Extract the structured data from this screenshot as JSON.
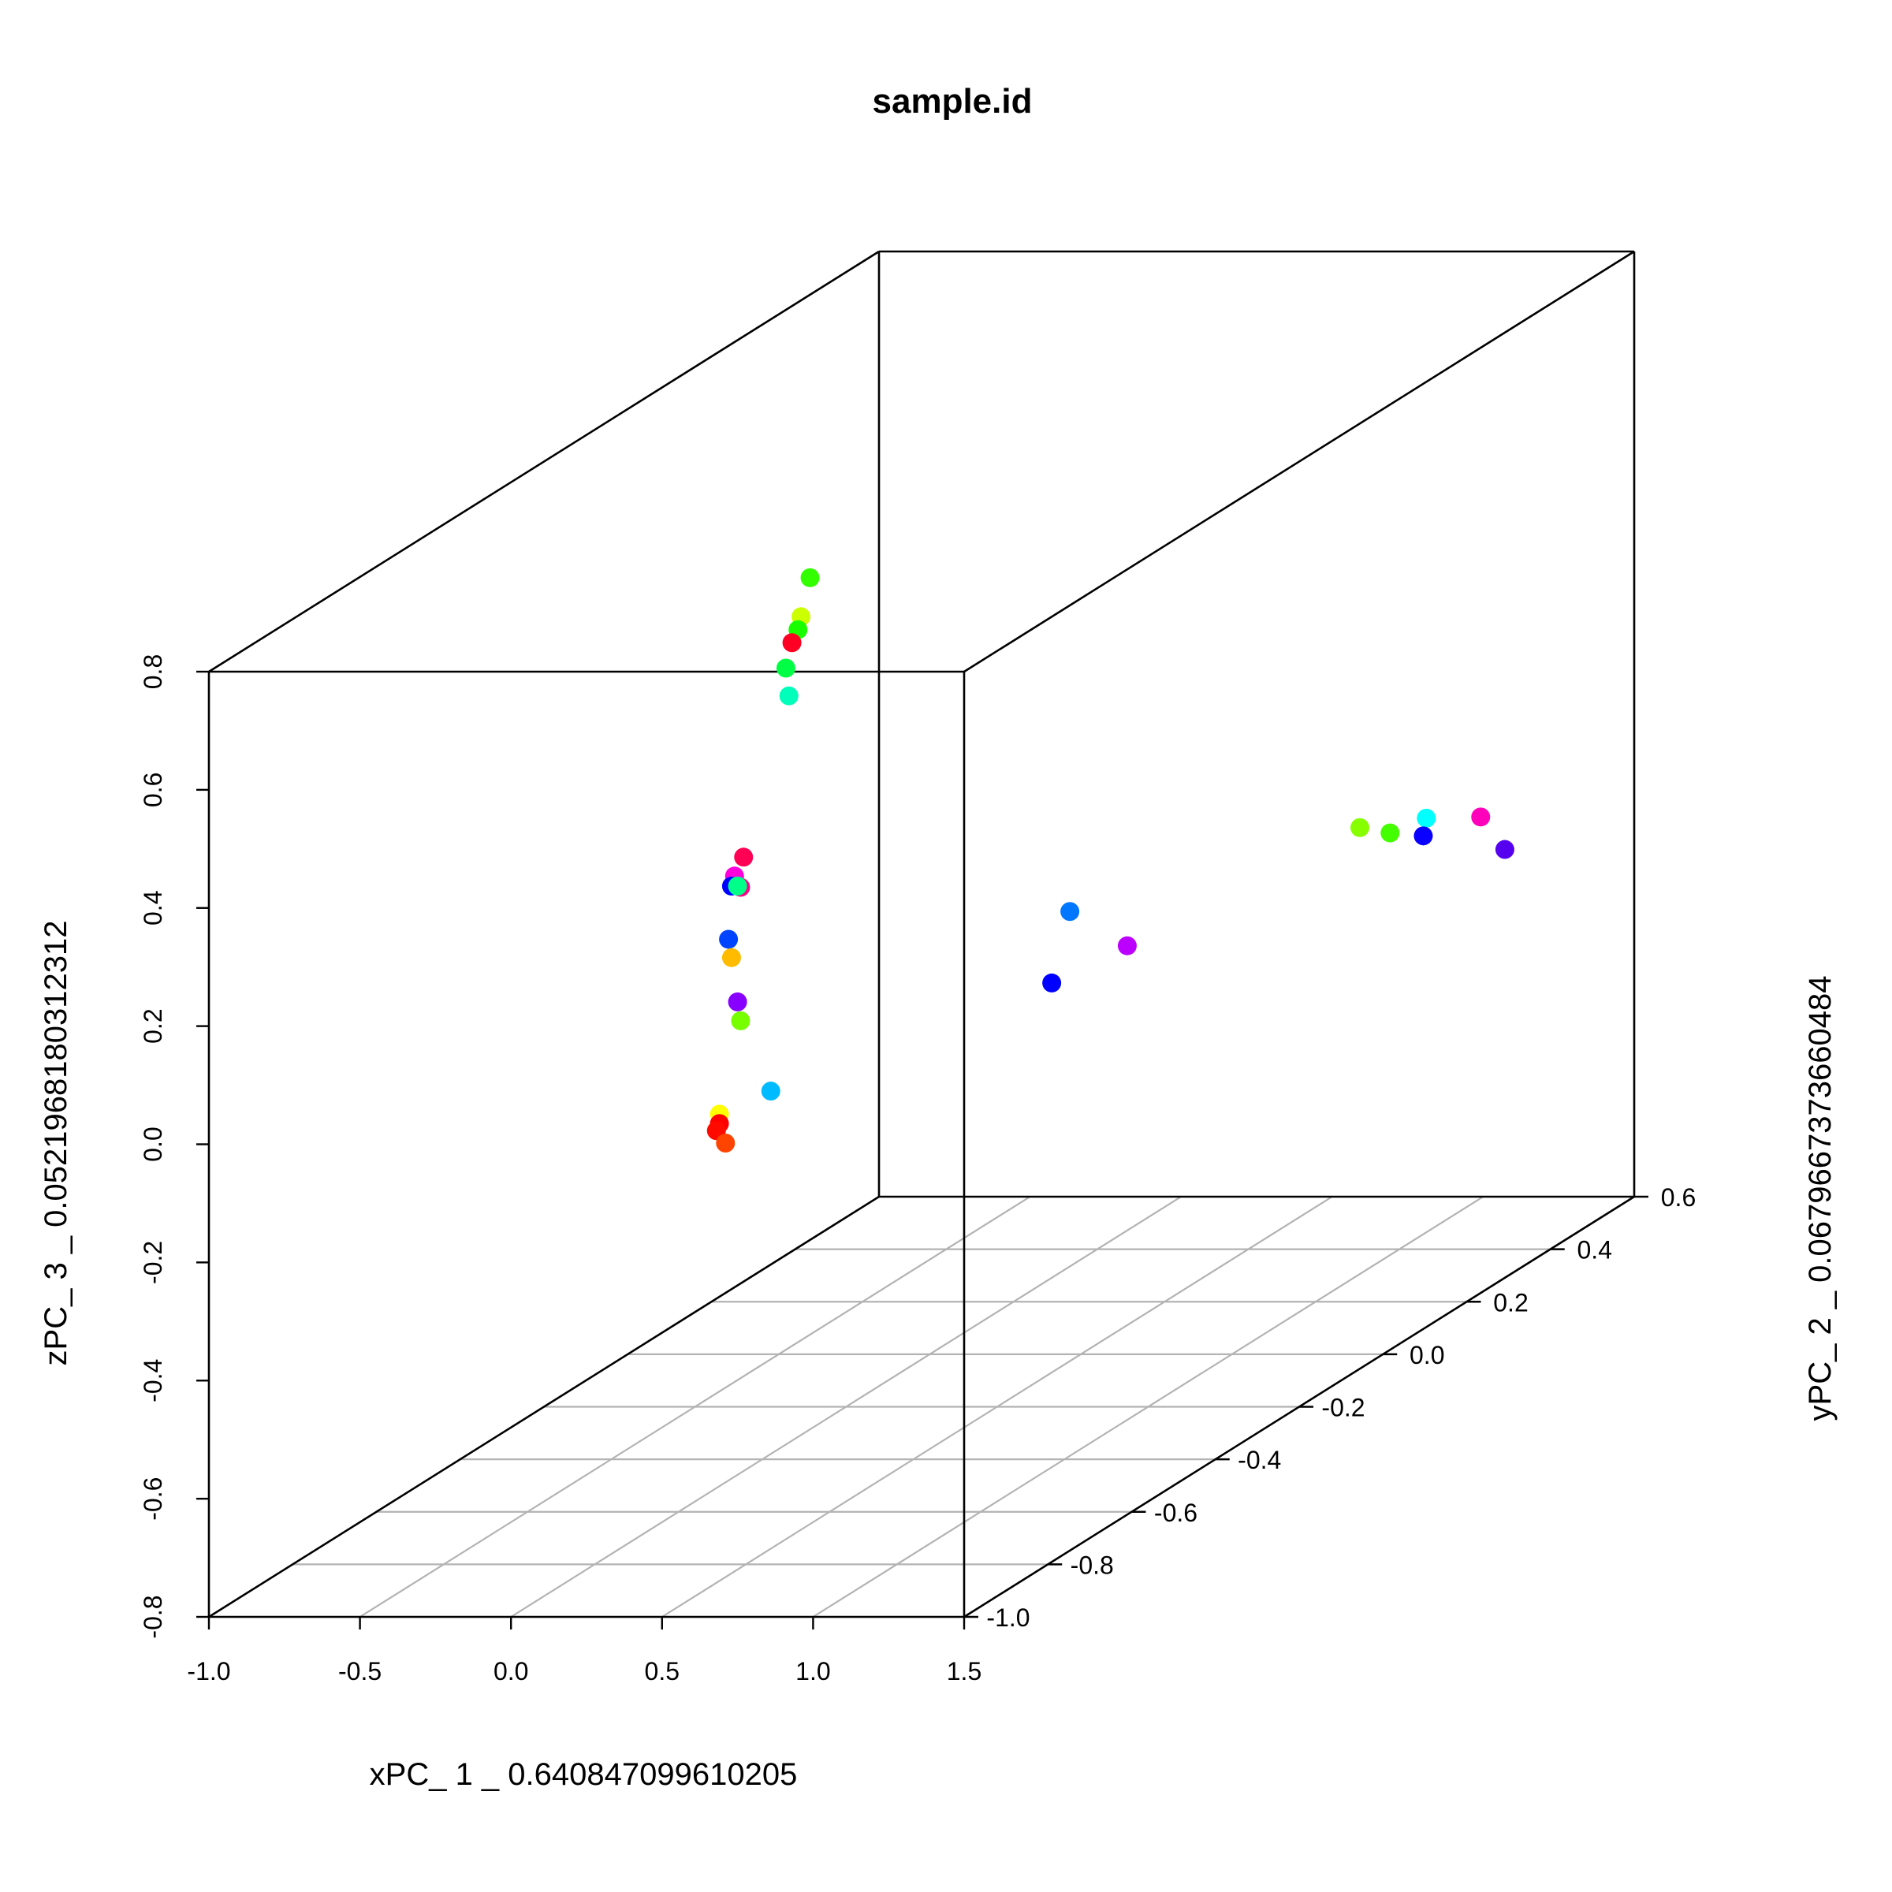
{
  "chart_data": {
    "type": "scatter",
    "title": "sample.id",
    "xlabel": "xPC_ 1 _ 0.640847099610205",
    "ylabel": "yPC_ 2 _ 0.0679667373660484",
    "zlabel": "zPC_ 3 _ 0.0521968180312312",
    "xlim": [
      -1.0,
      1.5
    ],
    "ylim": [
      -1.0,
      0.6
    ],
    "zlim": [
      -0.8,
      0.8
    ],
    "x_ticks": [
      "-1.0",
      "-0.5",
      "0.0",
      "0.5",
      "1.0",
      "1.5"
    ],
    "y_ticks": [
      "-1.0",
      "-0.8",
      "-0.6",
      "-0.4",
      "-0.2",
      "0.0",
      "0.2",
      "0.4",
      "0.6"
    ],
    "z_ticks": [
      "-0.8",
      "-0.6",
      "-0.4",
      "-0.2",
      "0.0",
      "0.2",
      "0.4",
      "0.6",
      "0.8"
    ],
    "projection": "perspective box, x front edge, y receding to the right, z vertical",
    "grid": "floor (x-y plane)",
    "legend": "none",
    "points_note": "points listed as screen-projected values: x on the x axis scale, z on the z axis scale at the front plane",
    "points": [
      {
        "x": 0.99,
        "z": 0.959,
        "color": "#33ff00"
      },
      {
        "x": 0.96,
        "z": 0.893,
        "color": "#ccff00"
      },
      {
        "x": 0.95,
        "z": 0.871,
        "color": "#1aff00"
      },
      {
        "x": 0.93,
        "z": 0.849,
        "color": "#ff0022"
      },
      {
        "x": 0.91,
        "z": 0.806,
        "color": "#00ff44"
      },
      {
        "x": 0.92,
        "z": 0.759,
        "color": "#00ffbb"
      },
      {
        "x": 0.77,
        "z": 0.486,
        "color": "#ff0055"
      },
      {
        "x": 0.74,
        "z": 0.454,
        "color": "#ff00dd"
      },
      {
        "x": 0.76,
        "z": 0.435,
        "color": "#ff0088"
      },
      {
        "x": 0.73,
        "z": 0.437,
        "color": "#0000ff"
      },
      {
        "x": 0.75,
        "z": 0.437,
        "color": "#00ff88"
      },
      {
        "x": 0.72,
        "z": 0.347,
        "color": "#0044ff"
      },
      {
        "x": 0.73,
        "z": 0.316,
        "color": "#ffbb00"
      },
      {
        "x": 0.75,
        "z": 0.241,
        "color": "#8800ff"
      },
      {
        "x": 0.76,
        "z": 0.209,
        "color": "#77ff00"
      },
      {
        "x": 0.86,
        "z": 0.09,
        "color": "#00bbff"
      },
      {
        "x": 0.69,
        "z": 0.051,
        "color": "#ffff00"
      },
      {
        "x": 0.69,
        "z": 0.035,
        "color": "#ff0000"
      },
      {
        "x": 0.68,
        "z": 0.023,
        "color": "#ff0a00"
      },
      {
        "x": 0.71,
        "z": 0.002,
        "color": "#ff4400"
      },
      {
        "x": 1.85,
        "z": 0.394,
        "color": "#0077ff"
      },
      {
        "x": 1.79,
        "z": 0.273,
        "color": "#0000ff"
      },
      {
        "x": 2.04,
        "z": 0.336,
        "color": "#bb00ff"
      },
      {
        "x": 2.81,
        "z": 0.536,
        "color": "#88ff00"
      },
      {
        "x": 2.91,
        "z": 0.527,
        "color": "#44ff00"
      },
      {
        "x": 3.03,
        "z": 0.552,
        "color": "#00ffff"
      },
      {
        "x": 3.02,
        "z": 0.522,
        "color": "#0a00ff"
      },
      {
        "x": 3.21,
        "z": 0.554,
        "color": "#ff00bb"
      },
      {
        "x": 3.29,
        "z": 0.499,
        "color": "#5500ee"
      }
    ]
  }
}
